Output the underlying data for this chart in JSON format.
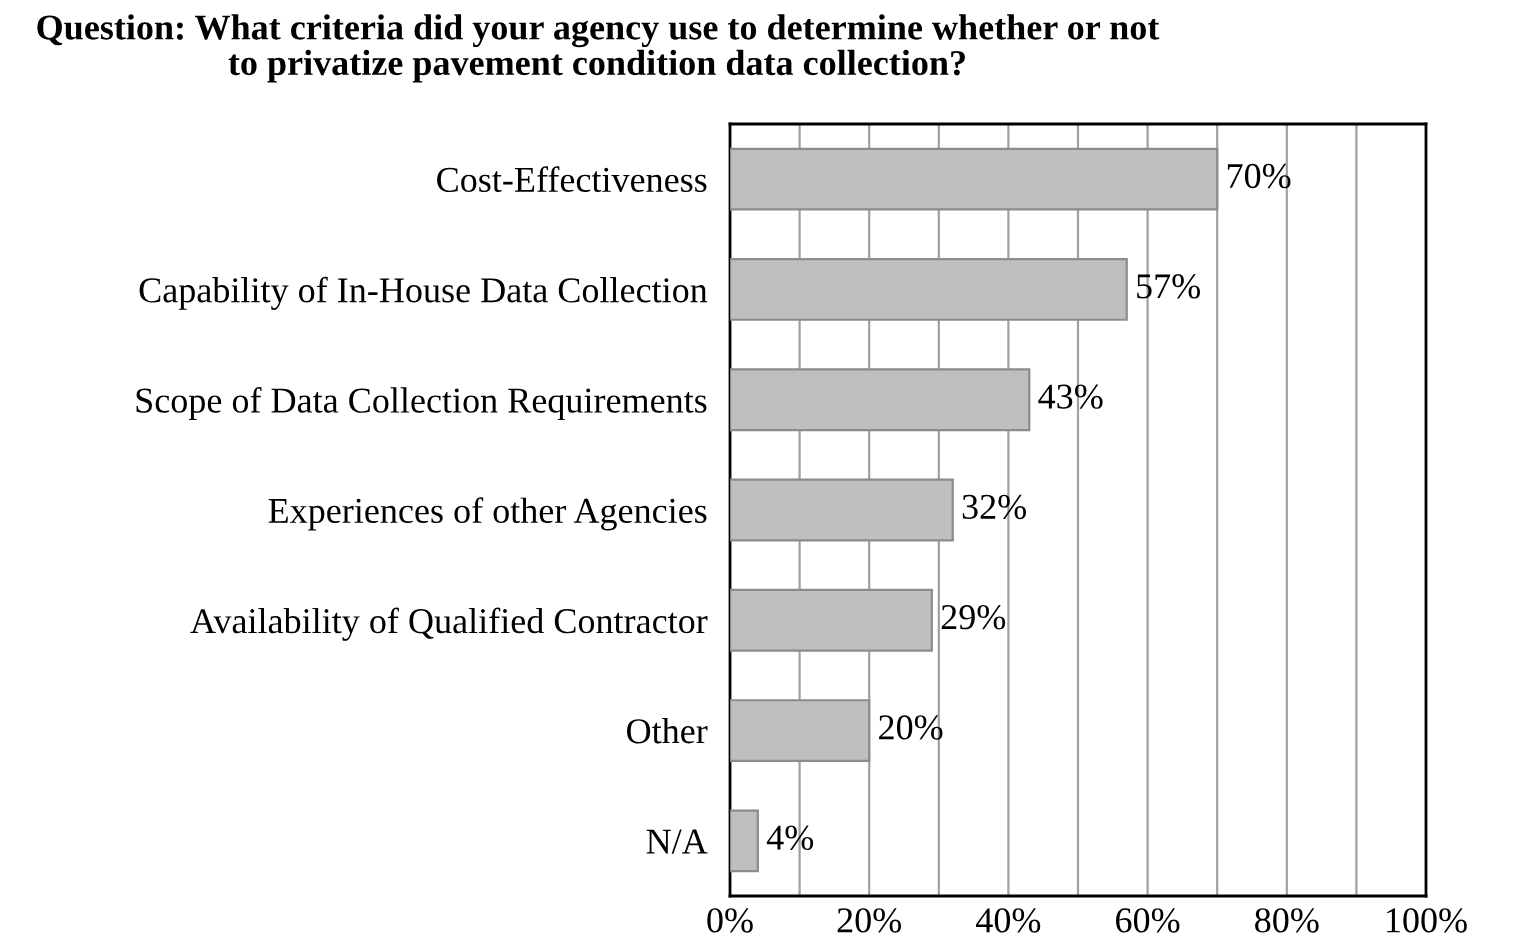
{
  "chart_data": {
    "type": "bar",
    "orientation": "horizontal",
    "title": "Question: What criteria did your agency use to determine whether or not\nto privatize pavement condition data collection?",
    "categories": [
      "Cost-Effectiveness",
      "Capability of In-House Data Collection",
      "Scope of Data Collection Requirements",
      "Experiences of other Agencies",
      "Availability of Qualified Contractor",
      "Other",
      "N/A"
    ],
    "values": [
      70,
      57,
      43,
      32,
      29,
      20,
      4
    ],
    "value_labels": [
      "70%",
      "57%",
      "43%",
      "32%",
      "29%",
      "20%",
      "4%"
    ],
    "color": "#bfbfbf",
    "xlim": [
      0,
      100
    ],
    "xticks": [
      {
        "value": 0,
        "label": "0%"
      },
      {
        "value": 10,
        "label": null
      },
      {
        "value": 20,
        "label": "20%"
      },
      {
        "value": 30,
        "label": null
      },
      {
        "value": 40,
        "label": "40%"
      },
      {
        "value": 50,
        "label": null
      },
      {
        "value": 60,
        "label": "60%"
      },
      {
        "value": 70,
        "label": null
      },
      {
        "value": 80,
        "label": "80%"
      },
      {
        "value": 90,
        "label": null
      },
      {
        "value": 100,
        "label": "100%"
      }
    ],
    "grid": "x"
  }
}
